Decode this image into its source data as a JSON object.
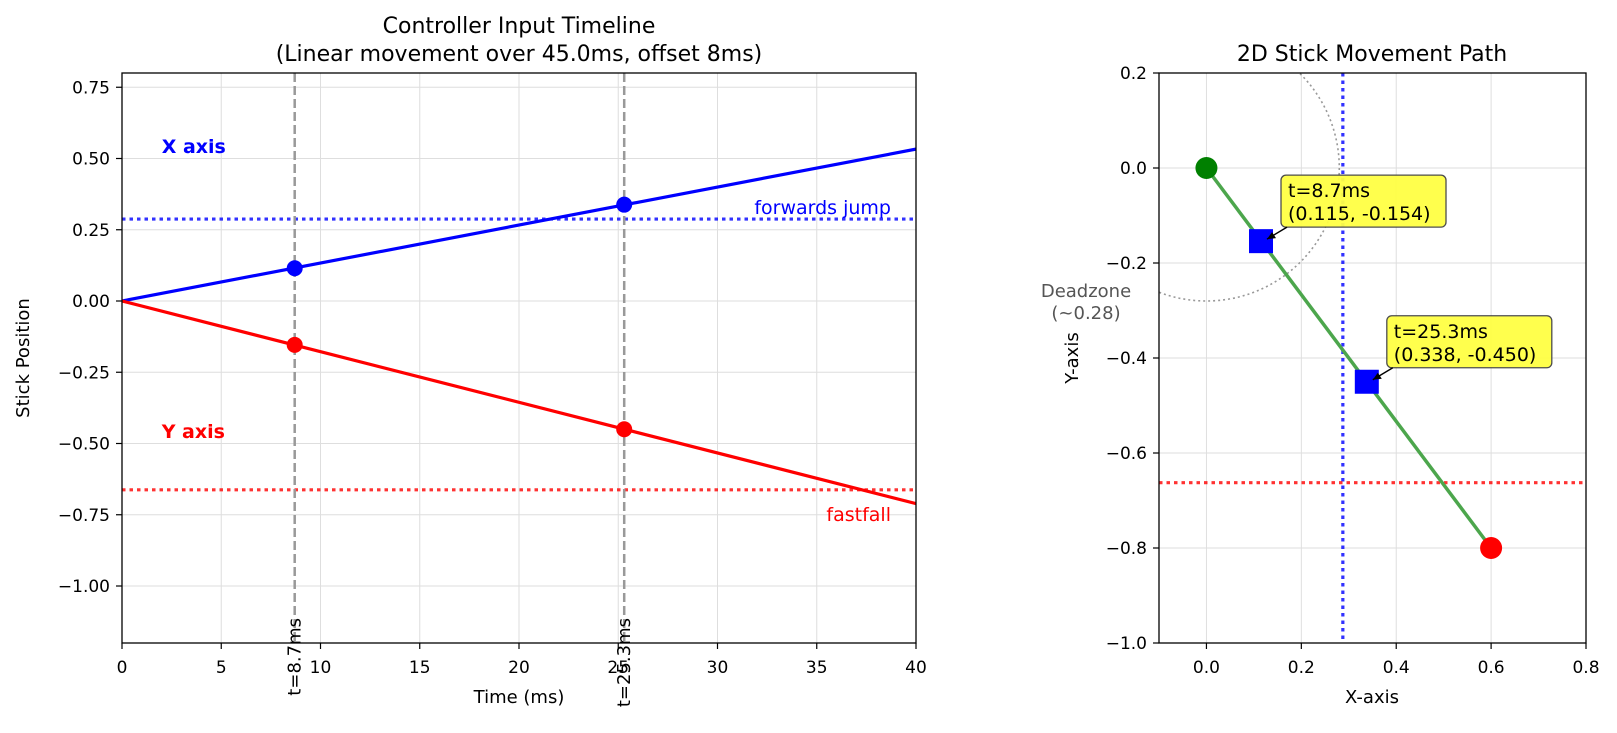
{
  "chart_data": [
    {
      "type": "line",
      "title": "Controller Input Timeline",
      "subtitle": "(Linear movement over 45.0ms, offset 8ms)",
      "xlabel": "Time (ms)",
      "ylabel": "Stick Position",
      "xlim": [
        0,
        40
      ],
      "ylim": [
        -1.2,
        0.8
      ],
      "xticks": [
        "0",
        "5",
        "10",
        "15",
        "20",
        "25",
        "30",
        "35",
        "40"
      ],
      "xtick_values": [
        0,
        5,
        10,
        15,
        20,
        25,
        30,
        35,
        40
      ],
      "yticks": [
        "0.75",
        "0.50",
        "0.25",
        "0.00",
        "−0.25",
        "−0.50",
        "−0.75",
        "−1.00"
      ],
      "ytick_values": [
        0.75,
        0.5,
        0.25,
        0.0,
        -0.25,
        -0.5,
        -0.75,
        -1.0
      ],
      "grid": true,
      "series": [
        {
          "name": "X axis",
          "color": "#0000ff",
          "x": [
            0,
            40
          ],
          "y": [
            0,
            0.533
          ]
        },
        {
          "name": "Y axis",
          "color": "#ff0000",
          "x": [
            0,
            40
          ],
          "y": [
            0,
            -0.711
          ]
        }
      ],
      "markers": [
        {
          "series": "X axis",
          "x": 8.7,
          "y": 0.115,
          "color": "#0000ff"
        },
        {
          "series": "X axis",
          "x": 25.3,
          "y": 0.338,
          "color": "#0000ff"
        },
        {
          "series": "Y axis",
          "x": 8.7,
          "y": -0.154,
          "color": "#ff0000"
        },
        {
          "series": "Y axis",
          "x": 25.3,
          "y": -0.45,
          "color": "#ff0000"
        }
      ],
      "thresholds": [
        {
          "label": "forwards jump",
          "y": 0.2875,
          "color": "#0000ff"
        },
        {
          "label": "fastfall",
          "y": -0.6625,
          "color": "#ff0000"
        }
      ],
      "vlines": [
        {
          "x": 8.7,
          "label": "t=8.7ms"
        },
        {
          "x": 25.3,
          "label": "t=25.3ms"
        }
      ],
      "series_labels": [
        {
          "text": "X axis",
          "x": 2,
          "y": 0.52,
          "color": "#0000ff"
        },
        {
          "text": "Y axis",
          "x": 2,
          "y": -0.48,
          "color": "#ff0000"
        }
      ]
    },
    {
      "type": "scatter",
      "title": "2D Stick Movement Path",
      "xlabel": "X-axis",
      "ylabel": "Y-axis",
      "xlim": [
        -0.1,
        0.8
      ],
      "ylim": [
        -1.0,
        0.2
      ],
      "xticks": [
        "0.0",
        "0.2",
        "0.4",
        "0.6",
        "0.8"
      ],
      "xtick_values": [
        0.0,
        0.2,
        0.4,
        0.6,
        0.8
      ],
      "yticks": [
        "0.2",
        "0.0",
        "−0.2",
        "−0.4",
        "−0.6",
        "−0.8",
        "−1.0"
      ],
      "ytick_values": [
        0.2,
        0.0,
        -0.2,
        -0.4,
        -0.6,
        -0.8,
        -1.0
      ],
      "grid": true,
      "path": {
        "color": "#4ca64c",
        "x": [
          0,
          0.6
        ],
        "y": [
          0,
          -0.8
        ]
      },
      "start": {
        "x": 0,
        "y": 0,
        "color": "#008000"
      },
      "end": {
        "x": 0.6,
        "y": -0.8,
        "color": "#ff0000"
      },
      "samples": [
        {
          "x": 0.115,
          "y": -0.154,
          "line1": "t=8.7ms",
          "line2": "(0.115, -0.154)"
        },
        {
          "x": 0.338,
          "y": -0.45,
          "line1": "t=25.3ms",
          "line2": "(0.338, -0.450)"
        }
      ],
      "deadzone": {
        "radius": 0.28,
        "line1": "Deadzone",
        "line2": "(~0.28)"
      },
      "vline_x": 0.2875,
      "hline_y": -0.6625,
      "sample_color": "#0000ff",
      "annotation_bg": "#ffff44"
    }
  ]
}
